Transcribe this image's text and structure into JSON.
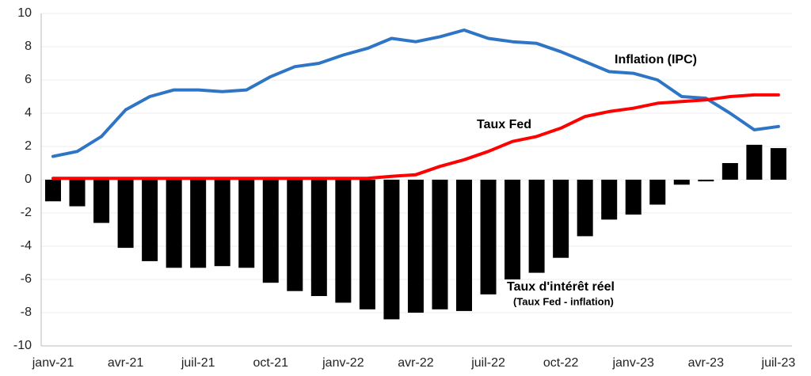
{
  "chart_data": {
    "type": "bar-line",
    "categories": [
      "janv-21",
      null,
      null,
      "avr-21",
      null,
      null,
      "juil-21",
      null,
      null,
      "oct-21",
      null,
      null,
      "janv-22",
      null,
      null,
      "avr-22",
      null,
      null,
      "juil-22",
      null,
      null,
      "oct-22",
      null,
      null,
      "janv-23",
      null,
      null,
      "avr-23",
      null,
      null,
      "juil-23"
    ],
    "series": [
      {
        "name": "Inflation (IPC)",
        "type": "line",
        "color": "#2e75c6",
        "values": [
          1.4,
          1.7,
          2.6,
          4.2,
          5.0,
          5.4,
          5.4,
          5.3,
          5.4,
          6.2,
          6.8,
          7.0,
          7.5,
          7.9,
          8.5,
          8.3,
          8.6,
          9.0,
          8.5,
          8.3,
          8.2,
          7.7,
          7.1,
          6.5,
          6.4,
          6.0,
          5.0,
          4.9,
          4.0,
          3.0,
          3.2
        ]
      },
      {
        "name": "Taux Fed",
        "type": "line",
        "color": "#ff0000",
        "values": [
          0.08,
          0.08,
          0.08,
          0.08,
          0.08,
          0.08,
          0.08,
          0.08,
          0.08,
          0.08,
          0.08,
          0.08,
          0.08,
          0.08,
          0.2,
          0.3,
          0.8,
          1.2,
          1.7,
          2.3,
          2.6,
          3.1,
          3.8,
          4.1,
          4.3,
          4.6,
          4.7,
          4.8,
          5.0,
          5.1,
          5.1
        ]
      },
      {
        "name": "Taux d'intérêt réel",
        "type": "bar",
        "color": "#000000",
        "values": [
          -1.3,
          -1.6,
          -2.6,
          -4.1,
          -4.9,
          -5.3,
          -5.3,
          -5.2,
          -5.3,
          -6.2,
          -6.7,
          -7.0,
          -7.4,
          -7.8,
          -8.4,
          -8.0,
          -7.8,
          -7.9,
          -6.9,
          -6.0,
          -5.6,
          -4.7,
          -3.4,
          -2.4,
          -2.1,
          -1.5,
          -0.3,
          -0.1,
          1.0,
          2.1,
          1.9
        ]
      }
    ],
    "annotation": "(Taux Fed - inflation)",
    "ylim": [
      -10,
      10
    ],
    "yticks": [
      -10,
      -8,
      -6,
      -4,
      -2,
      0,
      2,
      4,
      6,
      8,
      10
    ],
    "grid": true
  }
}
